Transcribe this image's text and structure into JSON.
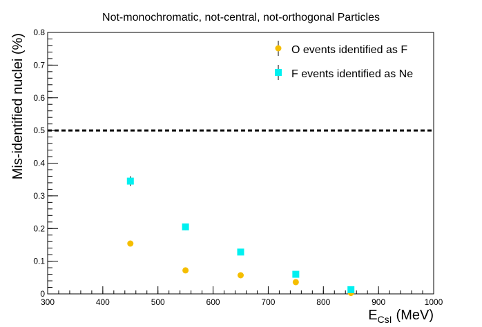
{
  "chart_data": {
    "type": "scatter",
    "title": "Not-monochromatic, not-central, not-orthogonal Particles",
    "xlabel_main": "E",
    "xlabel_sub": "CsI",
    "xlabel_unit": "(MeV)",
    "ylabel": "Mis-identified nuclei (%)",
    "xlim": [
      300,
      1000
    ],
    "ylim": [
      0,
      0.8
    ],
    "x_ticks": [
      300,
      400,
      500,
      600,
      700,
      800,
      900,
      1000
    ],
    "x_tick_labels": [
      "300",
      "400",
      "500",
      "600",
      "700",
      "800",
      "900",
      "1000"
    ],
    "y_ticks": [
      0,
      0.1,
      0.2,
      0.3,
      0.4,
      0.5,
      0.6,
      0.7,
      0.8
    ],
    "y_tick_labels": [
      "0",
      "0.1",
      "0.2",
      "0.3",
      "0.4",
      "0.5",
      "0.6",
      "0.7",
      "0.8"
    ],
    "reference_line": {
      "y": 0.5,
      "style": "dashed"
    },
    "legend_position": "top-right",
    "series": [
      {
        "name": "O events identified as F",
        "marker": "circle",
        "color": "#F5BE00",
        "points": [
          {
            "x": 450,
            "y": 0.154,
            "err": 0.003
          },
          {
            "x": 550,
            "y": 0.072,
            "err": 0.003
          },
          {
            "x": 650,
            "y": 0.057,
            "err": 0.003
          },
          {
            "x": 750,
            "y": 0.036,
            "err": 0.003
          },
          {
            "x": 850,
            "y": 0.003,
            "err": 0.002
          }
        ]
      },
      {
        "name": "F events identified as Ne",
        "marker": "square",
        "color": "#00F0F0",
        "points": [
          {
            "x": 450,
            "y": 0.345,
            "err": 0.015
          },
          {
            "x": 550,
            "y": 0.205,
            "err": 0.01
          },
          {
            "x": 650,
            "y": 0.128,
            "err": 0.005
          },
          {
            "x": 750,
            "y": 0.06,
            "err": 0.004
          },
          {
            "x": 850,
            "y": 0.013,
            "err": 0.003
          }
        ]
      }
    ]
  }
}
